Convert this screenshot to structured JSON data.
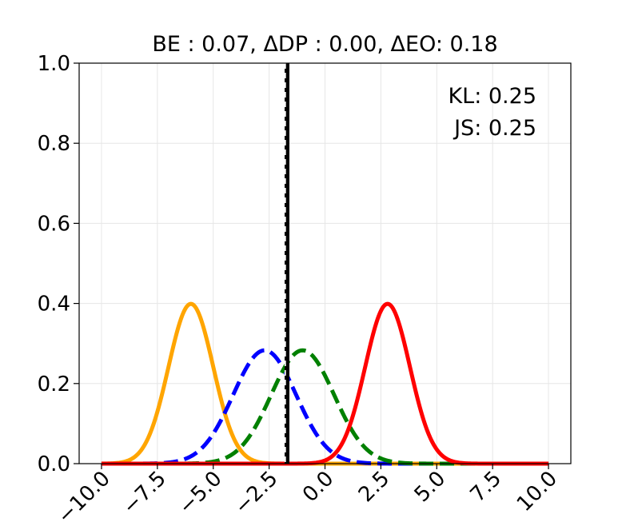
{
  "chart_data": {
    "type": "line",
    "title": "BE : 0.07, ΔDP : 0.00, ΔEO: 0.18",
    "xlim": [
      -11,
      11
    ],
    "ylim": [
      0,
      1
    ],
    "grid": true,
    "x_ticks": [
      -10,
      -7.5,
      -5,
      -2.5,
      0,
      2.5,
      5,
      7.5,
      10
    ],
    "x_tick_labels": [
      "−10.0",
      "−7.5",
      "−5.0",
      "−2.5",
      "0.0",
      "2.5",
      "5.0",
      "7.5",
      "10.0"
    ],
    "y_ticks": [
      0,
      0.2,
      0.4,
      0.6,
      0.8,
      1.0
    ],
    "y_tick_labels": [
      "0.0",
      "0.2",
      "0.4",
      "0.6",
      "0.8",
      "1.0"
    ],
    "x_range": [
      -10,
      10
    ],
    "annotations": [
      "KL: 0.25",
      "JS: 0.25"
    ],
    "series": [
      {
        "type": "gaussian",
        "mean": -6.0,
        "std": 1.0,
        "color": "#ffa500",
        "style": "solid"
      },
      {
        "type": "gaussian",
        "mean": -2.7,
        "std": 1.41,
        "color": "#0000ff",
        "style": "dashed"
      },
      {
        "type": "gaussian",
        "mean": -1.0,
        "std": 1.41,
        "color": "#008000",
        "style": "dashed"
      },
      {
        "type": "gaussian",
        "mean": 2.8,
        "std": 1.0,
        "color": "#ff0000",
        "style": "solid"
      }
    ],
    "threshold": {
      "x": -1.7,
      "color": "#000000",
      "overlay_color": "#ffffff"
    }
  }
}
